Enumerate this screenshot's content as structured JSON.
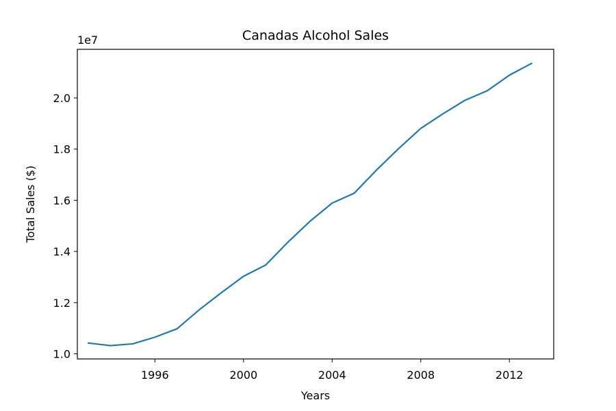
{
  "chart_data": {
    "type": "line",
    "title": "Canadas Alcohol Sales",
    "xlabel": "Years",
    "ylabel": "Total Sales ($)",
    "y_offset_label": "1e7",
    "xlim": [
      1992.5,
      2014.0
    ],
    "ylim": [
      9800000,
      21900000
    ],
    "x_ticks": [
      1996,
      2000,
      2004,
      2008,
      2012
    ],
    "x_tick_labels": [
      "1996",
      "2000",
      "2004",
      "2008",
      "2012"
    ],
    "y_ticks": [
      10000000,
      12000000,
      14000000,
      16000000,
      18000000,
      20000000
    ],
    "y_tick_labels": [
      "1.0",
      "1.2",
      "1.4",
      "1.6",
      "1.8",
      "2.0"
    ],
    "grid": false,
    "series": [
      {
        "color": "#1f77b4",
        "x": [
          1993,
          1994,
          1995,
          1996,
          1997,
          1998,
          1999,
          2000,
          2001,
          2002,
          2003,
          2004,
          2005,
          2006,
          2007,
          2008,
          2009,
          2010,
          2011,
          2012,
          2013
        ],
        "values": [
          10420000,
          10320000,
          10390000,
          10650000,
          10980000,
          11720000,
          12390000,
          13030000,
          13470000,
          14360000,
          15180000,
          15890000,
          16280000,
          17180000,
          18020000,
          18810000,
          19380000,
          19910000,
          20280000,
          20890000,
          21350000
        ]
      }
    ]
  }
}
